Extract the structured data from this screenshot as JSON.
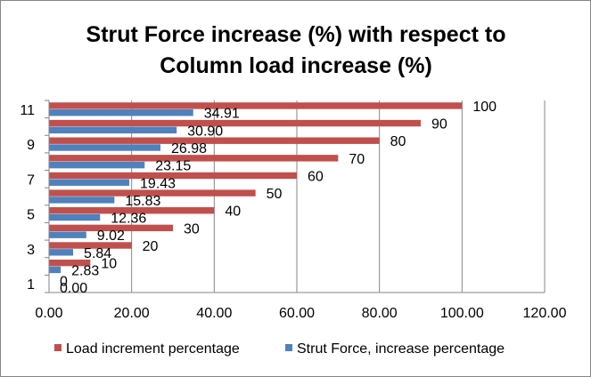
{
  "chart_data": {
    "type": "bar",
    "orientation": "horizontal",
    "title_lines": [
      "Strut Force increase (%) with respect to",
      "Column load increase (%)"
    ],
    "categories": [
      "1",
      "2",
      "3",
      "4",
      "5",
      "6",
      "7",
      "8",
      "9",
      "10",
      "11"
    ],
    "category_tick_labels": [
      "1",
      "",
      "3",
      "",
      "5",
      "",
      "7",
      "",
      "9",
      "",
      "11"
    ],
    "series": [
      {
        "name": "Strut Force, increase percentage",
        "color": "#4f81bd",
        "values": [
          0,
          2.83,
          5.84,
          9.02,
          12.36,
          15.83,
          19.43,
          23.15,
          26.98,
          30.9,
          34.91
        ],
        "labels": [
          "0.00",
          "2.83",
          "5.84",
          "9.02",
          "12.36",
          "15.83",
          "19.43",
          "23.15",
          "26.98",
          "30.90",
          "34.91"
        ]
      },
      {
        "name": "Load increment percentage",
        "color": "#c0504d",
        "values": [
          0,
          10,
          20,
          30,
          40,
          50,
          60,
          70,
          80,
          90,
          100
        ],
        "labels": [
          "0",
          "10",
          "20",
          "30",
          "40",
          "50",
          "60",
          "70",
          "80",
          "90",
          "100"
        ]
      }
    ],
    "x_ticks": [
      0,
      20,
      40,
      60,
      80,
      100,
      120
    ],
    "x_tick_labels": [
      "0.00",
      "20.00",
      "40.00",
      "60.00",
      "80.00",
      "100.00",
      "120.00"
    ],
    "xlim": [
      0,
      120
    ],
    "grid": "vertical major",
    "legend_position": "bottom",
    "legend_order": [
      "Load increment percentage",
      "Strut Force, increase percentage"
    ]
  }
}
